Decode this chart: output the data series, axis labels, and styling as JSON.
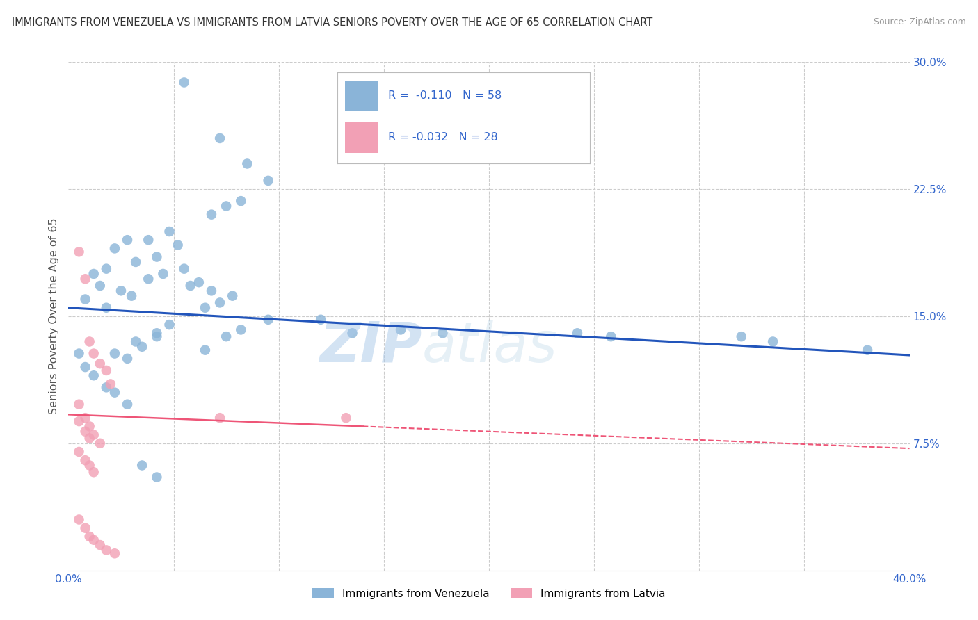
{
  "title": "IMMIGRANTS FROM VENEZUELA VS IMMIGRANTS FROM LATVIA SENIORS POVERTY OVER THE AGE OF 65 CORRELATION CHART",
  "source": "Source: ZipAtlas.com",
  "ylabel": "Seniors Poverty Over the Age of 65",
  "xlabel": "",
  "xlim": [
    0,
    0.4
  ],
  "ylim": [
    0,
    0.3
  ],
  "grid_color": "#cccccc",
  "background_color": "#ffffff",
  "watermark_left": "ZIP",
  "watermark_right": "atlas",
  "legend_R1": "R =  -0.110",
  "legend_N1": "N = 58",
  "legend_R2": "R = -0.032",
  "legend_N2": "N = 28",
  "series1_label": "Immigrants from Venezuela",
  "series2_label": "Immigrants from Latvia",
  "color1": "#8ab4d8",
  "color2": "#f2a0b5",
  "line_color1": "#2255bb",
  "line_color2": "#ee5577",
  "axis_color": "#3366cc",
  "venezuela_x": [
    0.055,
    0.072,
    0.085,
    0.095,
    0.075,
    0.068,
    0.082,
    0.048,
    0.038,
    0.042,
    0.052,
    0.028,
    0.022,
    0.018,
    0.032,
    0.012,
    0.015,
    0.025,
    0.008,
    0.018,
    0.03,
    0.038,
    0.045,
    0.055,
    0.062,
    0.068,
    0.072,
    0.078,
    0.058,
    0.065,
    0.048,
    0.042,
    0.035,
    0.028,
    0.022,
    0.032,
    0.042,
    0.095,
    0.082,
    0.075,
    0.065,
    0.12,
    0.135,
    0.158,
    0.178,
    0.242,
    0.258,
    0.32,
    0.335,
    0.38,
    0.005,
    0.008,
    0.012,
    0.018,
    0.022,
    0.028,
    0.035,
    0.042
  ],
  "venezuela_y": [
    0.288,
    0.255,
    0.24,
    0.23,
    0.215,
    0.21,
    0.218,
    0.2,
    0.195,
    0.185,
    0.192,
    0.195,
    0.19,
    0.178,
    0.182,
    0.175,
    0.168,
    0.165,
    0.16,
    0.155,
    0.162,
    0.172,
    0.175,
    0.178,
    0.17,
    0.165,
    0.158,
    0.162,
    0.168,
    0.155,
    0.145,
    0.138,
    0.132,
    0.125,
    0.128,
    0.135,
    0.14,
    0.148,
    0.142,
    0.138,
    0.13,
    0.148,
    0.14,
    0.142,
    0.14,
    0.14,
    0.138,
    0.138,
    0.135,
    0.13,
    0.128,
    0.12,
    0.115,
    0.108,
    0.105,
    0.098,
    0.062,
    0.055
  ],
  "latvia_x": [
    0.005,
    0.008,
    0.01,
    0.012,
    0.015,
    0.018,
    0.02,
    0.005,
    0.008,
    0.01,
    0.012,
    0.015,
    0.005,
    0.008,
    0.01,
    0.012,
    0.005,
    0.008,
    0.01,
    0.072,
    0.132,
    0.005,
    0.008,
    0.01,
    0.012,
    0.015,
    0.018,
    0.022
  ],
  "latvia_y": [
    0.188,
    0.172,
    0.135,
    0.128,
    0.122,
    0.118,
    0.11,
    0.098,
    0.09,
    0.085,
    0.08,
    0.075,
    0.07,
    0.065,
    0.062,
    0.058,
    0.088,
    0.082,
    0.078,
    0.09,
    0.09,
    0.03,
    0.025,
    0.02,
    0.018,
    0.015,
    0.012,
    0.01
  ],
  "vline_x0": 0.0,
  "vline_x1": 0.4,
  "vline_y0_ven": 0.155,
  "vline_y1_ven": 0.127,
  "vline_y0_lat": 0.092,
  "vline_y1_lat": 0.072
}
